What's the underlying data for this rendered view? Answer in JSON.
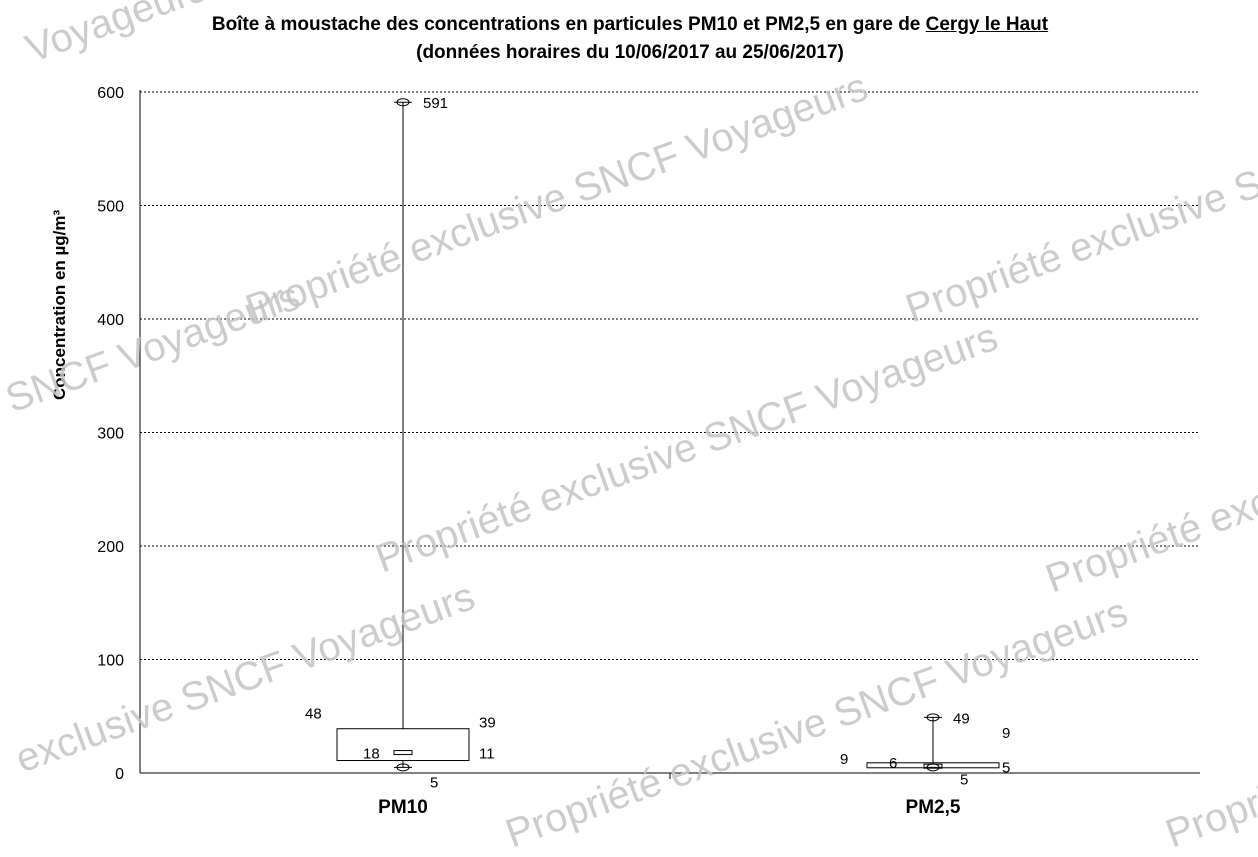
{
  "chart_data": {
    "type": "boxplot",
    "title_line1_prefix": "Boîte à moustache des concentrations en particules PM10 et PM2,5 en gare de ",
    "title_line1_underlined": "Cergy le Haut",
    "title_line2": "(données horaires du 10/06/2017 au 25/06/2017)",
    "ylabel": "Concentration en µg/m³",
    "ylim": [
      0,
      600
    ],
    "yticks": [
      "0",
      "100",
      "200",
      "300",
      "400",
      "500",
      "600"
    ],
    "grid": true,
    "categories": [
      "PM10",
      "PM2,5"
    ],
    "boxes": [
      {
        "name": "PM10",
        "min": 5,
        "q1": 11,
        "median": 18,
        "q3": 39,
        "max": 591,
        "mean_label": "48",
        "labels": {
          "max": "591",
          "q3": "39",
          "median": "18",
          "q1": "11",
          "min": "5",
          "mean": "48"
        }
      },
      {
        "name": "PM2,5",
        "min": 5,
        "q1": 5,
        "median": 6,
        "q3": 9,
        "max": 49,
        "mean_label": "9",
        "labels": {
          "max": "49",
          "q3": "9",
          "median": "6",
          "q1": "5",
          "min": "5",
          "mean": "9",
          "left": "9"
        }
      }
    ]
  },
  "watermark": {
    "text_a": "Propriété exclusive SNCF Voyageurs",
    "text_b": "Propriété exclusive SNCF",
    "text_c": "SNCF Voyageurs",
    "text_d": "Voyageurs",
    "text_e": "Propriét",
    "text_f": "exclusive SNCF Voyageurs",
    "text_g": "Propriété exclus",
    "text_h": "Propri"
  }
}
